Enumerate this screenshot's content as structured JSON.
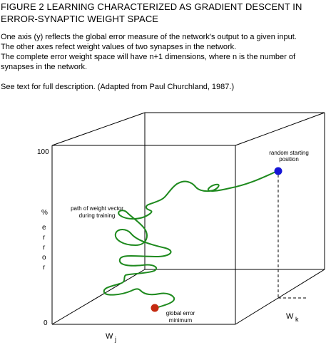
{
  "title": {
    "line1": "FIGURE 2  LEARNING CHARACTERIZED AS GRADIENT DESCENT IN",
    "line2": "ERROR-SYNAPTIC WEIGHT SPACE"
  },
  "description": {
    "line1": "One axis (y) reflects the global error measure of the network's output to a given input.",
    "line2": "The other axes refect weight values of two synapses in the network.",
    "line3": "The complete error weight space will have n+1 dimensions, where n is the number of",
    "line4": "synapses in the network.",
    "line5": "See text for full description.  (Adapted from Paul Churchland, 1987.)"
  },
  "axes": {
    "y_max": "100",
    "y_min": "0",
    "y_unit": "%",
    "y_word": [
      "e",
      "r",
      "r",
      "o",
      "r"
    ],
    "x_label_main": "W",
    "x_label_sub": "j",
    "z_label_main": "W",
    "z_label_sub": "k"
  },
  "annotations": {
    "start_line1": "random starting",
    "start_line2": "position",
    "path_line1": "path of weight vector",
    "path_line2": "during training",
    "min_line1": "global error",
    "min_line2": "minimum"
  },
  "colors": {
    "path": "#1e8a1e",
    "start_point": "#1515d6",
    "end_point": "#c42a10",
    "box": "#000000"
  }
}
